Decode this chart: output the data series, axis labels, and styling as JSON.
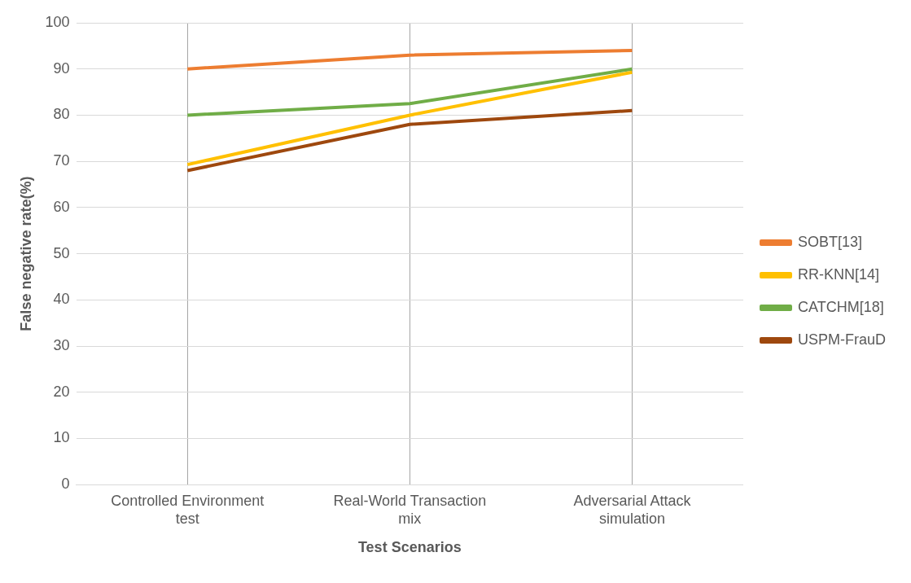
{
  "chart_data": {
    "type": "line",
    "xlabel": "Test Scenarios",
    "ylabel": "False negative rate(%)",
    "categories": [
      "Controlled Environment test",
      "Real-World Transaction mix",
      "Adversarial Attack simulation"
    ],
    "series": [
      {
        "name": "SOBT[13]",
        "color": "#ed7d31",
        "values": [
          90,
          93,
          94
        ]
      },
      {
        "name": "RR-KNN[14]",
        "color": "#ffc000",
        "values": [
          69.3,
          80,
          89.3
        ]
      },
      {
        "name": "CATCHM[18]",
        "color": "#70ad47",
        "values": [
          80,
          82.5,
          90
        ]
      },
      {
        "name": "USPM-FrauD",
        "color": "#9e480e",
        "values": [
          68,
          78,
          81
        ]
      }
    ],
    "ylim": [
      0,
      100
    ],
    "yticks": [
      0,
      10,
      20,
      30,
      40,
      50,
      60,
      70,
      80,
      90,
      100
    ],
    "grid": true,
    "legend": "right",
    "marker": "none",
    "line_style": "solid"
  }
}
